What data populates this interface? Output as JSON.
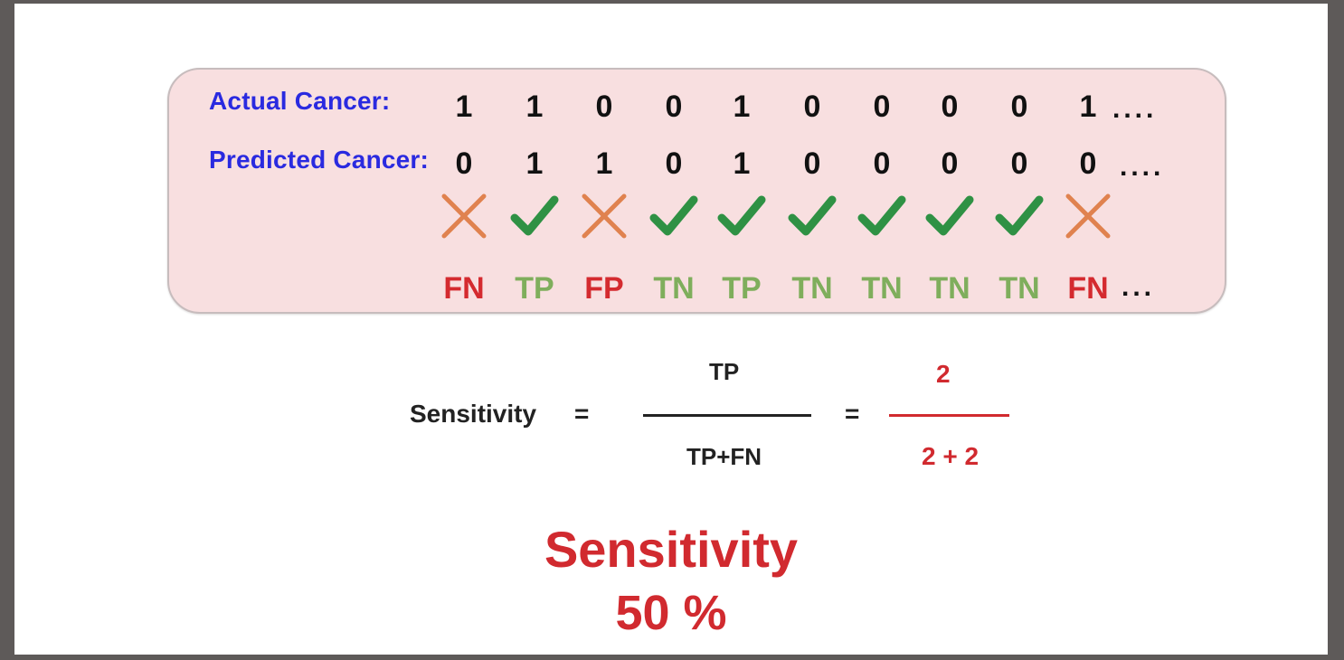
{
  "table": {
    "actual_label": "Actual Cancer:",
    "predicted_label": "Predicted Cancer:",
    "actual": [
      "1",
      "1",
      "0",
      "0",
      "1",
      "0",
      "0",
      "0",
      "0",
      "1"
    ],
    "predicted": [
      "0",
      "1",
      "1",
      "0",
      "1",
      "0",
      "0",
      "0",
      "0",
      "0"
    ],
    "actual_ellipsis": "....",
    "predicted_ellipsis": "....",
    "marks": [
      "cross",
      "check",
      "cross",
      "check",
      "check",
      "check",
      "check",
      "check",
      "check",
      "cross"
    ],
    "outcomes": [
      "FN",
      "TP",
      "FP",
      "TN",
      "TP",
      "TN",
      "TN",
      "TN",
      "TN",
      "FN"
    ],
    "outcomes_ellipsis": "...",
    "colors": {
      "error": "#d42a2f",
      "correct": "#7fae5c",
      "cross": "#e0824f",
      "check": "#2f9144",
      "label": "#2a2ae0"
    }
  },
  "formula": {
    "lhs": "Sensitivity",
    "eq1": "=",
    "num": "TP",
    "den": "TP+FN",
    "eq2": "=",
    "num_value": "2",
    "den_value": "2 + 2"
  },
  "result": {
    "title": "Sensitivity",
    "value": "50 %"
  }
}
